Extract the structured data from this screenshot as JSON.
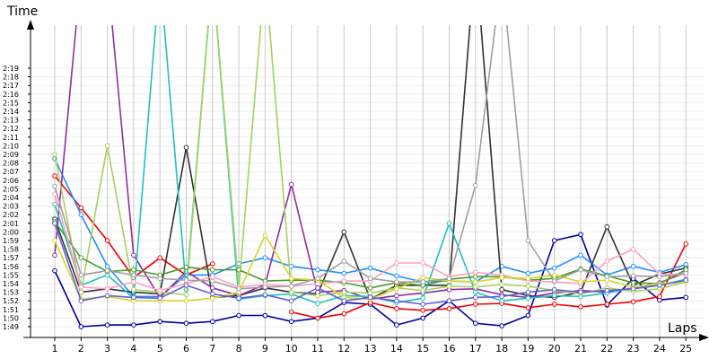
{
  "chart_data": {
    "type": "line",
    "xlabel": "Laps",
    "ylabel": "Time",
    "x": [
      1,
      2,
      3,
      4,
      5,
      6,
      7,
      8,
      9,
      10,
      11,
      12,
      13,
      14,
      15,
      16,
      17,
      18,
      19,
      20,
      21,
      22,
      23,
      24,
      25
    ],
    "ylim_seconds": [
      108,
      141
    ],
    "y_tick_labels": [
      "1:49",
      "1:50",
      "1:51",
      "1:52",
      "1:53",
      "1:54",
      "1:55",
      "1:56",
      "1:57",
      "1:58",
      "1:59",
      "2:00",
      "2:01",
      "2:02",
      "2:03",
      "2:04",
      "2:05",
      "2:06",
      "2:07",
      "2:08",
      "2:09",
      "2:10",
      "2:11",
      "2:12",
      "2:13",
      "2:14",
      "2:15",
      "2:16",
      "2:17",
      "2:18",
      "2:19"
    ],
    "grid": true,
    "legend": "none",
    "series": [
      {
        "color": "#0000a0",
        "values": [
          115.5,
          109.0,
          109.2,
          109.2,
          109.6,
          109.4,
          109.6,
          110.3,
          110.3,
          109.6,
          110.0,
          111.8,
          111.6,
          109.2,
          110.0,
          112.0,
          109.4,
          109.1,
          110.3,
          119.0,
          119.7,
          111.5,
          114.6,
          112.1,
          112.4
        ]
      },
      {
        "color": "#f20000",
        "values": [
          126.5,
          122.8,
          119.0,
          114.7,
          117.0,
          115.0,
          116.3,
          null,
          null,
          110.7,
          110.0,
          110.5,
          111.8,
          111.1,
          110.9,
          111.1,
          111.6,
          111.7,
          111.2,
          111.6,
          111.3,
          111.6,
          111.9,
          112.5,
          118.6
        ]
      },
      {
        "color": "#1e90ff",
        "values": [
          128.5,
          122.0,
          116.0,
          112.5,
          112.5,
          115.0,
          115.0,
          116.3,
          117.0,
          116.0,
          115.6,
          115.2,
          115.8,
          114.9,
          114.2,
          114.3,
          114.2,
          116.0,
          115.2,
          115.8,
          117.3,
          115.0,
          116.0,
          115.3,
          116.2
        ]
      },
      {
        "color": "#333333",
        "values": [
          121.5,
          113.0,
          113.4,
          113.0,
          112.8,
          129.8,
          112.4,
          112.6,
          113.5,
          113.0,
          112.8,
          120.0,
          112.2,
          113.8,
          113.8,
          113.8,
          152,
          113.3,
          112.6,
          112.4,
          113.0,
          120.6,
          113.8,
          115.1,
          115.8
        ]
      },
      {
        "color": "#8e2ea0",
        "values": [
          117.3,
          150,
          150,
          117.3,
          112.4,
          115.4,
          113.5,
          112.6,
          113.9,
          125.5,
          113.0,
          113.2,
          112.2,
          112.6,
          112.9,
          113.3,
          113.4,
          112.7,
          112.4,
          112.9,
          113.2,
          113.0,
          113.5,
          114.1,
          115.3
        ]
      },
      {
        "color": "#20c0c0",
        "values": [
          123.2,
          113.8,
          115.0,
          112.3,
          150,
          113.3,
          150,
          112.2,
          112.6,
          112.8,
          111.7,
          112.6,
          112.5,
          111.8,
          112.3,
          121.0,
          113.0,
          112.0,
          112.3,
          112.6,
          112.5,
          112.9,
          113.5,
          113.8,
          114.5
        ]
      },
      {
        "color": "#a8d060",
        "values": [
          129.0,
          113.0,
          130.0,
          113.3,
          113.0,
          112.7,
          150,
          113.4,
          150,
          113.0,
          112.6,
          113.0,
          112.9,
          113.5,
          113.2,
          113.7,
          113.6,
          113.9,
          113.7,
          113.2,
          112.8,
          113.5,
          113.1,
          113.4,
          114.2
        ]
      },
      {
        "color": "#4c9a2a",
        "values": [
          121.2,
          117.0,
          115.4,
          115.6,
          115.0,
          115.9,
          115.6,
          115.6,
          114.3,
          114.4,
          114.4,
          114.1,
          113.5,
          114.1,
          113.8,
          114.5,
          114.8,
          114.8,
          114.4,
          114.6,
          115.7,
          114.9,
          114.1,
          114.0,
          115.6
        ]
      },
      {
        "color": "#ff9ec0",
        "values": [
          124.4,
          113.6,
          113.4,
          114.2,
          113.2,
          114.0,
          114.8,
          113.6,
          113.9,
          113.7,
          114.0,
          114.3,
          114.3,
          116.4,
          116.4,
          114.8,
          115.3,
          115.0,
          114.3,
          114.2,
          114.0,
          116.6,
          118.0,
          115.1,
          115.0
        ]
      },
      {
        "color": "#d6d62a",
        "values": [
          119.0,
          112.2,
          112.5,
          112.0,
          112.0,
          112.0,
          112.3,
          113.0,
          119.6,
          114.6,
          114.4,
          112.4,
          112.2,
          113.4,
          114.7,
          114.3,
          114.2,
          114.7,
          114.6,
          115.0,
          114.2,
          114.4,
          113.6,
          114.0,
          114.2
        ]
      },
      {
        "color": "#a0a0a0",
        "values": [
          125.3,
          115.0,
          115.5,
          115.0,
          114.6,
          114.4,
          114.3,
          113.4,
          113.6,
          113.7,
          114.6,
          116.6,
          114.6,
          114.2,
          114.2,
          114.6,
          125.4,
          150,
          119.0,
          114.3,
          115.6,
          114.8,
          114.9,
          114.8,
          115.2
        ]
      },
      {
        "color": "#6060d0",
        "values": [
          121.0,
          112.0,
          112.6,
          112.4,
          112.3,
          113.8,
          112.8,
          112.3,
          112.7,
          112.0,
          113.5,
          112.0,
          112.4,
          112.0,
          111.6,
          112.0,
          112.4,
          112.5,
          113.0,
          113.3,
          113.0,
          113.2,
          113.4,
          113.8,
          114.4
        ]
      }
    ]
  }
}
